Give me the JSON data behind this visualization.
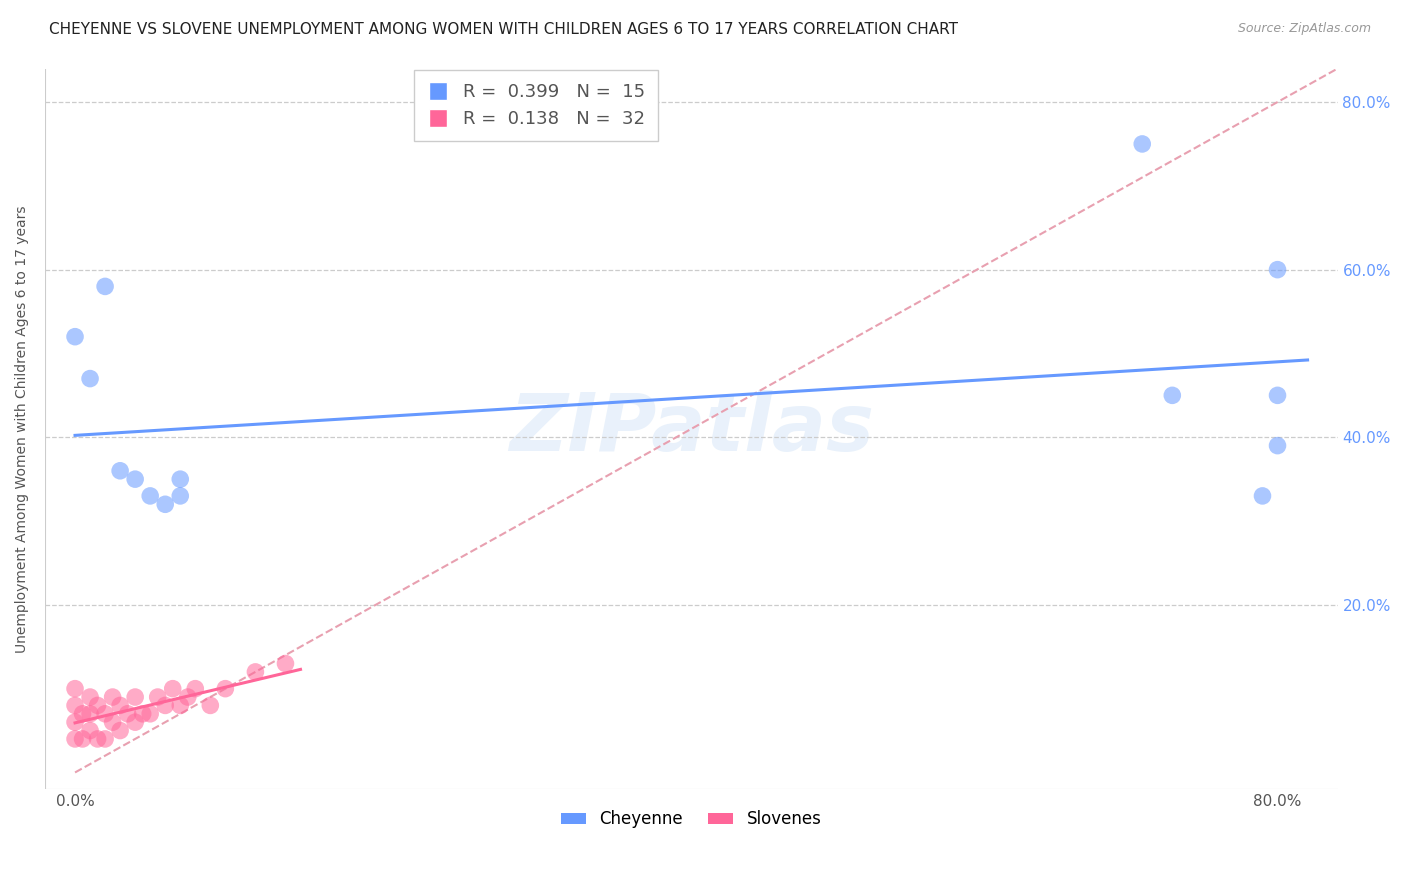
{
  "title": "CHEYENNE VS SLOVENE UNEMPLOYMENT AMONG WOMEN WITH CHILDREN AGES 6 TO 17 YEARS CORRELATION CHART",
  "source": "Source: ZipAtlas.com",
  "ylabel": "Unemployment Among Women with Children Ages 6 to 17 years",
  "cheyenne_color": "#6699FF",
  "slovene_color": "#FF6699",
  "cheyenne_R": 0.399,
  "cheyenne_N": 15,
  "slovene_R": 0.138,
  "slovene_N": 32,
  "cheyenne_x": [
    0.0,
    0.01,
    0.02,
    0.03,
    0.04,
    0.05,
    0.06,
    0.07,
    0.07,
    0.71,
    0.73,
    0.79,
    0.8,
    0.8,
    0.8
  ],
  "cheyenne_y": [
    0.52,
    0.47,
    0.58,
    0.36,
    0.35,
    0.33,
    0.32,
    0.33,
    0.35,
    0.75,
    0.45,
    0.33,
    0.39,
    0.45,
    0.6
  ],
  "slovene_x": [
    0.0,
    0.0,
    0.0,
    0.0,
    0.005,
    0.005,
    0.01,
    0.01,
    0.01,
    0.015,
    0.015,
    0.02,
    0.02,
    0.025,
    0.025,
    0.03,
    0.03,
    0.035,
    0.04,
    0.04,
    0.045,
    0.05,
    0.055,
    0.06,
    0.065,
    0.07,
    0.075,
    0.08,
    0.09,
    0.1,
    0.12,
    0.14
  ],
  "slovene_y": [
    0.04,
    0.06,
    0.08,
    0.1,
    0.04,
    0.07,
    0.05,
    0.07,
    0.09,
    0.04,
    0.08,
    0.04,
    0.07,
    0.06,
    0.09,
    0.05,
    0.08,
    0.07,
    0.06,
    0.09,
    0.07,
    0.07,
    0.09,
    0.08,
    0.1,
    0.08,
    0.09,
    0.1,
    0.08,
    0.1,
    0.12,
    0.13
  ],
  "watermark": "ZIPatlas",
  "xlim_min": -0.02,
  "xlim_max": 0.84,
  "ylim_min": -0.02,
  "ylim_max": 0.84,
  "xtick_left": 0.0,
  "xtick_right": 0.8,
  "yticks": [
    0.2,
    0.4,
    0.6,
    0.8
  ],
  "ytick_labels": [
    "20.0%",
    "40.0%",
    "60.0%",
    "80.0%"
  ],
  "background_color": "#ffffff",
  "legend_labels": [
    "Cheyenne",
    "Slovenes"
  ],
  "title_fontsize": 11,
  "axis_fontsize": 10,
  "tick_fontsize": 11
}
